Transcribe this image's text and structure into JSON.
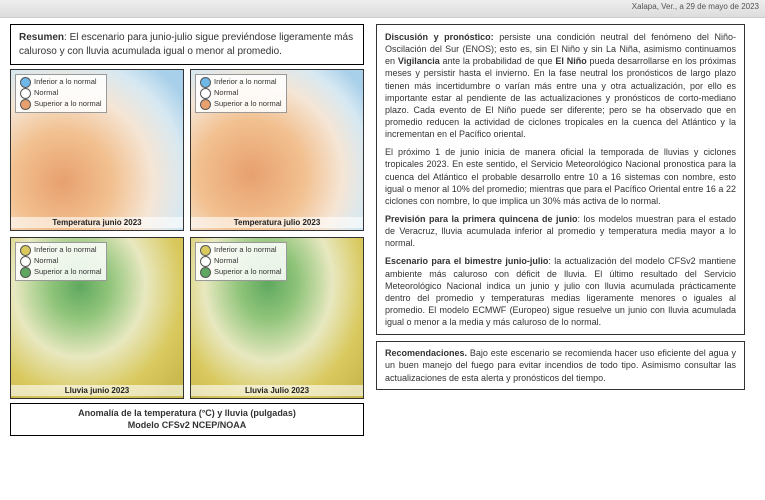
{
  "header": {
    "location_date": "Xalapa, Ver., a 29 de mayo de 2023"
  },
  "summary": {
    "label": "Resumen",
    "text": ": El escenario para junio-julio sigue previéndose ligeramente más caluroso y con lluvia acumulada igual o menor al promedio."
  },
  "legend": {
    "inferior": "Inferior a lo normal",
    "normal": "Normal",
    "superior": "Superior a lo normal"
  },
  "maps": {
    "temp_jun": {
      "caption": "Temperatura junio 2023",
      "colors": {
        "low": "#6fb7e8",
        "mid": "#ffffff",
        "high": "#e8a06f"
      },
      "gradient": "radial-gradient(circle at 30% 70%, #e8a06f 0%, #f2c08f 30%, #f5e6d6 55%, #d6e8f2 75%, #a8d0ea 90%)"
    },
    "temp_jul": {
      "caption": "Temperatura julio 2023",
      "colors": {
        "low": "#6fb7e8",
        "mid": "#ffffff",
        "high": "#e8a06f"
      },
      "gradient": "radial-gradient(circle at 35% 65%, #e8a06f 0%, #f2c08f 35%, #f5e6d6 60%, #d6e8f2 78%, #a8d0ea 92%)"
    },
    "rain_jun": {
      "caption": "Lluvia junio 2023",
      "colors": {
        "low": "#d9c95f",
        "mid": "#ffffff",
        "high": "#5fa85f"
      },
      "gradient": "radial-gradient(ellipse at 40% 30%, #5fa85f 0%, #8fc47a 20%, #e8e8c0 45%, #d9c95f 70%, #c9b94f 90%)"
    },
    "rain_jul": {
      "caption": "Lluvia Julio 2023",
      "colors": {
        "low": "#d9c95f",
        "mid": "#ffffff",
        "high": "#5fa85f"
      },
      "gradient": "radial-gradient(ellipse at 45% 28%, #5fa85f 0%, #8fc47a 22%, #e8e8c0 48%, #d9c95f 72%, #c9b94f 92%)"
    }
  },
  "model_caption": {
    "line1": "Anomalía de la temperatura (°C) y lluvia (pulgadas)",
    "line2": "Modelo CFSv2 NCEP/NOAA"
  },
  "discussion": {
    "heading": "Discusión y pronóstico:",
    "p1": " persiste una condición neutral del fenómeno del Niño-Oscilación del Sur (ENOS); esto es, sin El Niño y sin La Niña, asimismo continuamos en ",
    "vigilancia": "Vigilancia",
    "p1b": " ante la probabilidad de que ",
    "elnino": "El Niño",
    "p1c": " pueda desarrollarse en los próximas meses y persistir hasta el invierno. En la fase neutral los pronósticos de largo plazo tienen más incertidumbre o varían más entre una y otra actualización, por ello es importante estar al pendiente de las actualizaciones y pronósticos de corto-mediano plazo. Cada evento de El Niño puede ser diferente; pero se ha observado que en promedio reducen la actividad de ciclones tropicales en la cuenca del Atlántico y la incrementan en el Pacífico oriental.",
    "p2": "El próximo 1 de junio inicia de manera oficial la temporada de lluvias y ciclones tropicales 2023. En este sentido, el Servicio Meteorológico Nacional pronostica para la cuenca del Atlántico el probable desarrollo entre 10 a 16 sistemas con nombre, esto igual o menor al 10% del promedio; mientras que para el Pacífico Oriental entre 16 a 22 ciclones con nombre, lo que implica un 30% más activa de lo normal.",
    "p3_head": "Previsión para la primera quincena de junio",
    "p3": ": los modelos muestran para el estado de Veracruz, lluvia acumulada inferior al promedio y temperatura media mayor a lo normal.",
    "p4_head": "Escenario para el bimestre junio-julio",
    "p4": ": la actualización del modelo CFSv2 mantiene ambiente más caluroso con déficit de lluvia. El último resultado del Servicio Meteorológico Nacional indica un junio y julio con lluvia acumulada prácticamente dentro del promedio y temperaturas medias ligeramente menores o iguales al promedio. El modelo ECMWF (Europeo) sigue resuelve un junio con lluvia acumulada igual o menor a la media y más caluroso de lo normal."
  },
  "recommendations": {
    "heading": "Recomendaciones.",
    "text": " Bajo este escenario se recomienda hacer uso eficiente del agua y un buen manejo del fuego para evitar incendios de todo tipo. Asimismo consultar las actualizaciones de esta alerta y pronósticos del tiempo."
  }
}
